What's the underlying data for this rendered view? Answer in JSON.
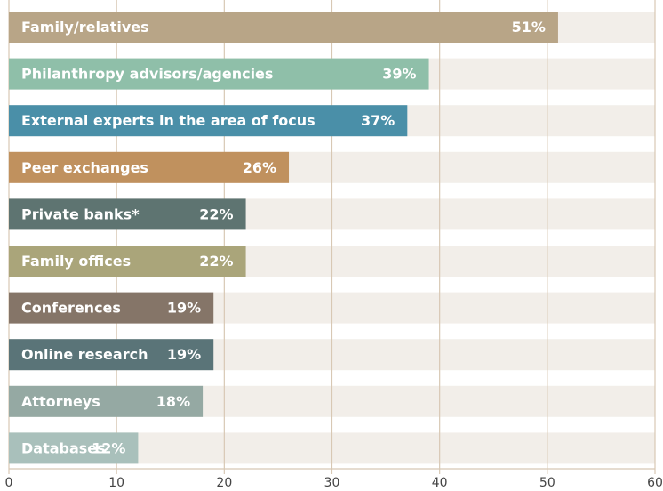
{
  "chart_data": {
    "type": "bar",
    "orientation": "horizontal",
    "categories": [
      "Family/relatives",
      "Philanthropy advisors/agencies",
      "External experts in the area of focus",
      "Peer exchanges",
      "Private banks*",
      "Family offices",
      "Conferences",
      "Online research",
      "Attorneys",
      "Databases"
    ],
    "values": [
      51,
      39,
      37,
      26,
      22,
      22,
      19,
      19,
      18,
      12
    ],
    "value_labels": [
      "51%",
      "39%",
      "37%",
      "26%",
      "22%",
      "22%",
      "19%",
      "19%",
      "18%",
      "12%"
    ],
    "colors": [
      "#b8a587",
      "#8fbfa9",
      "#4a8fa8",
      "#c0915e",
      "#5e7471",
      "#aaa57a",
      "#857568",
      "#5a7478",
      "#95a9a3",
      "#a9c0bb"
    ],
    "xlim": [
      0,
      60
    ],
    "xticks": [
      0,
      10,
      20,
      30,
      40,
      50,
      60
    ],
    "grid": true
  }
}
